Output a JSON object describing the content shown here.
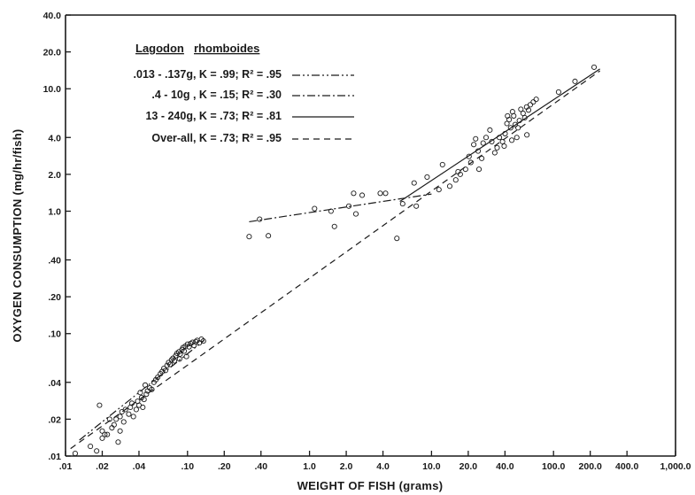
{
  "chart_data": {
    "type": "scatter",
    "xlabel": "WEIGHT OF FISH (grams)",
    "ylabel": "OXYGEN CONSUMPTION (mg/hr/fish)",
    "xscale": "log",
    "yscale": "log",
    "xlim": [
      0.01,
      1000
    ],
    "ylim": [
      0.01,
      40
    ],
    "grid": false,
    "legend_placement": "top-left",
    "x_ticks": [
      {
        "value": 0.01,
        "label": ".01"
      },
      {
        "value": 0.02,
        "label": ".02"
      },
      {
        "value": 0.04,
        "label": ".04"
      },
      {
        "value": 0.1,
        "label": ".10"
      },
      {
        "value": 0.2,
        "label": ".20"
      },
      {
        "value": 0.4,
        "label": ".40"
      },
      {
        "value": 1,
        "label": "1.0"
      },
      {
        "value": 2,
        "label": "2.0"
      },
      {
        "value": 4,
        "label": "4.0"
      },
      {
        "value": 10,
        "label": "10.0"
      },
      {
        "value": 20,
        "label": "20.0"
      },
      {
        "value": 40,
        "label": "40.0"
      },
      {
        "value": 100,
        "label": "100.0"
      },
      {
        "value": 200,
        "label": "200.0"
      },
      {
        "value": 400,
        "label": "400.0"
      },
      {
        "value": 1000,
        "label": "1,000.0"
      }
    ],
    "y_ticks": [
      {
        "value": 0.01,
        "label": ".01"
      },
      {
        "value": 0.02,
        "label": ".02"
      },
      {
        "value": 0.04,
        "label": ".04"
      },
      {
        "value": 0.1,
        "label": ".10"
      },
      {
        "value": 0.2,
        "label": ".20"
      },
      {
        "value": 0.4,
        "label": ".40"
      },
      {
        "value": 1,
        "label": "1.0"
      },
      {
        "value": 2,
        "label": "2.0"
      },
      {
        "value": 4,
        "label": "4.0"
      },
      {
        "value": 10,
        "label": "10.0"
      },
      {
        "value": 20,
        "label": "20.0"
      },
      {
        "value": 40,
        "label": "40.0"
      }
    ],
    "legend": {
      "title_genus": "Lagodon",
      "title_species": "rhomboides",
      "entries": [
        {
          "label": ".013 - .137g,  K = .99; R² = .95",
          "dash": "dash-dot-dot"
        },
        {
          "label": ".4 - 10g , K = .15; R² = .30",
          "dash": "dash-dot"
        },
        {
          "label": "13 - 240g, K = .73; R² = .81",
          "dash": "solid"
        },
        {
          "label": "Over-all, K = .73; R² = .95",
          "dash": "dashed"
        }
      ]
    },
    "lines": [
      {
        "name": ".013 - .137g",
        "dash": "dash-dot-dot",
        "x": [
          0.013,
          0.137
        ],
        "y": [
          0.0135,
          0.088
        ]
      },
      {
        "name": ".4 - 10g",
        "dash": "dash-dot",
        "x": [
          0.32,
          10
        ],
        "y": [
          0.82,
          1.38
        ]
      },
      {
        "name": "13 - 240g",
        "dash": "solid",
        "x": [
          5.5,
          240
        ],
        "y": [
          1.2,
          14.5
        ]
      },
      {
        "name": "Over-all",
        "dash": "dashed",
        "x": [
          0.011,
          240
        ],
        "y": [
          0.0115,
          14.0
        ]
      }
    ],
    "points": [
      [
        0.019,
        0.026
      ],
      [
        0.012,
        0.0105
      ],
      [
        0.018,
        0.011
      ],
      [
        0.016,
        0.012
      ],
      [
        0.02,
        0.014
      ],
      [
        0.021,
        0.015
      ],
      [
        0.02,
        0.016
      ],
      [
        0.022,
        0.015
      ],
      [
        0.024,
        0.017
      ],
      [
        0.025,
        0.018
      ],
      [
        0.023,
        0.02
      ],
      [
        0.026,
        0.02
      ],
      [
        0.028,
        0.021
      ],
      [
        0.03,
        0.019
      ],
      [
        0.028,
        0.016
      ],
      [
        0.027,
        0.013
      ],
      [
        0.031,
        0.024
      ],
      [
        0.029,
        0.023
      ],
      [
        0.033,
        0.022
      ],
      [
        0.034,
        0.025
      ],
      [
        0.036,
        0.021
      ],
      [
        0.038,
        0.024
      ],
      [
        0.035,
        0.027
      ],
      [
        0.039,
        0.028
      ],
      [
        0.04,
        0.026
      ],
      [
        0.042,
        0.03
      ],
      [
        0.041,
        0.033
      ],
      [
        0.044,
        0.029
      ],
      [
        0.043,
        0.025
      ],
      [
        0.046,
        0.032
      ],
      [
        0.047,
        0.034
      ],
      [
        0.049,
        0.036
      ],
      [
        0.045,
        0.038
      ],
      [
        0.051,
        0.035
      ],
      [
        0.053,
        0.04
      ],
      [
        0.055,
        0.042
      ],
      [
        0.057,
        0.044
      ],
      [
        0.06,
        0.047
      ],
      [
        0.062,
        0.049
      ],
      [
        0.064,
        0.052
      ],
      [
        0.066,
        0.05
      ],
      [
        0.068,
        0.055
      ],
      [
        0.07,
        0.058
      ],
      [
        0.072,
        0.056
      ],
      [
        0.074,
        0.061
      ],
      [
        0.076,
        0.063
      ],
      [
        0.078,
        0.06
      ],
      [
        0.08,
        0.066
      ],
      [
        0.082,
        0.069
      ],
      [
        0.085,
        0.071
      ],
      [
        0.087,
        0.068
      ],
      [
        0.09,
        0.074
      ],
      [
        0.092,
        0.077
      ],
      [
        0.094,
        0.072
      ],
      [
        0.096,
        0.079
      ],
      [
        0.1,
        0.082
      ],
      [
        0.103,
        0.078
      ],
      [
        0.106,
        0.083
      ],
      [
        0.11,
        0.085
      ],
      [
        0.113,
        0.08
      ],
      [
        0.117,
        0.086
      ],
      [
        0.12,
        0.088
      ],
      [
        0.125,
        0.084
      ],
      [
        0.13,
        0.09
      ],
      [
        0.135,
        0.087
      ],
      [
        0.098,
        0.065
      ],
      [
        0.086,
        0.062
      ],
      [
        0.32,
        0.62
      ],
      [
        0.39,
        0.86
      ],
      [
        0.46,
        0.63
      ],
      [
        1.1,
        1.05
      ],
      [
        1.5,
        1.0
      ],
      [
        1.6,
        0.75
      ],
      [
        2.1,
        1.1
      ],
      [
        2.3,
        1.4
      ],
      [
        2.7,
        1.35
      ],
      [
        2.4,
        0.95
      ],
      [
        3.8,
        1.4
      ],
      [
        4.2,
        1.4
      ],
      [
        5.2,
        0.6
      ],
      [
        5.8,
        1.15
      ],
      [
        7.2,
        1.7
      ],
      [
        7.5,
        1.1
      ],
      [
        9.2,
        1.9
      ],
      [
        11.5,
        1.5
      ],
      [
        12.3,
        2.4
      ],
      [
        14.1,
        1.6
      ],
      [
        15.8,
        1.8
      ],
      [
        16.5,
        2.1
      ],
      [
        17.2,
        2.0
      ],
      [
        19.0,
        2.2
      ],
      [
        20.3,
        2.8
      ],
      [
        21.0,
        2.5
      ],
      [
        22.2,
        3.5
      ],
      [
        23.0,
        3.9
      ],
      [
        24.1,
        3.1
      ],
      [
        24.5,
        2.2
      ],
      [
        25.8,
        2.7
      ],
      [
        26.5,
        3.6
      ],
      [
        28.0,
        4.0
      ],
      [
        30.1,
        4.6
      ],
      [
        31.2,
        3.7
      ],
      [
        33.0,
        3.0
      ],
      [
        34.5,
        3.3
      ],
      [
        36.0,
        4.0
      ],
      [
        38.2,
        3.7
      ],
      [
        39.4,
        3.4
      ],
      [
        40.1,
        4.3
      ],
      [
        41.5,
        5.2
      ],
      [
        42.0,
        6.0
      ],
      [
        43.3,
        5.6
      ],
      [
        44.5,
        4.8
      ],
      [
        46.1,
        6.5
      ],
      [
        47.2,
        6.0
      ],
      [
        48.5,
        5.1
      ],
      [
        50.0,
        4.0
      ],
      [
        51.2,
        4.8
      ],
      [
        52.5,
        5.5
      ],
      [
        54.0,
        6.8
      ],
      [
        56.3,
        6.3
      ],
      [
        58.1,
        5.8
      ],
      [
        60.2,
        7.1
      ],
      [
        62.4,
        6.7
      ],
      [
        64.5,
        7.4
      ],
      [
        68.3,
        7.8
      ],
      [
        72.1,
        8.2
      ],
      [
        110.0,
        9.4
      ],
      [
        150.0,
        11.5
      ],
      [
        215.0,
        15.0
      ],
      [
        60.5,
        4.2
      ],
      [
        45.5,
        3.8
      ]
    ]
  }
}
